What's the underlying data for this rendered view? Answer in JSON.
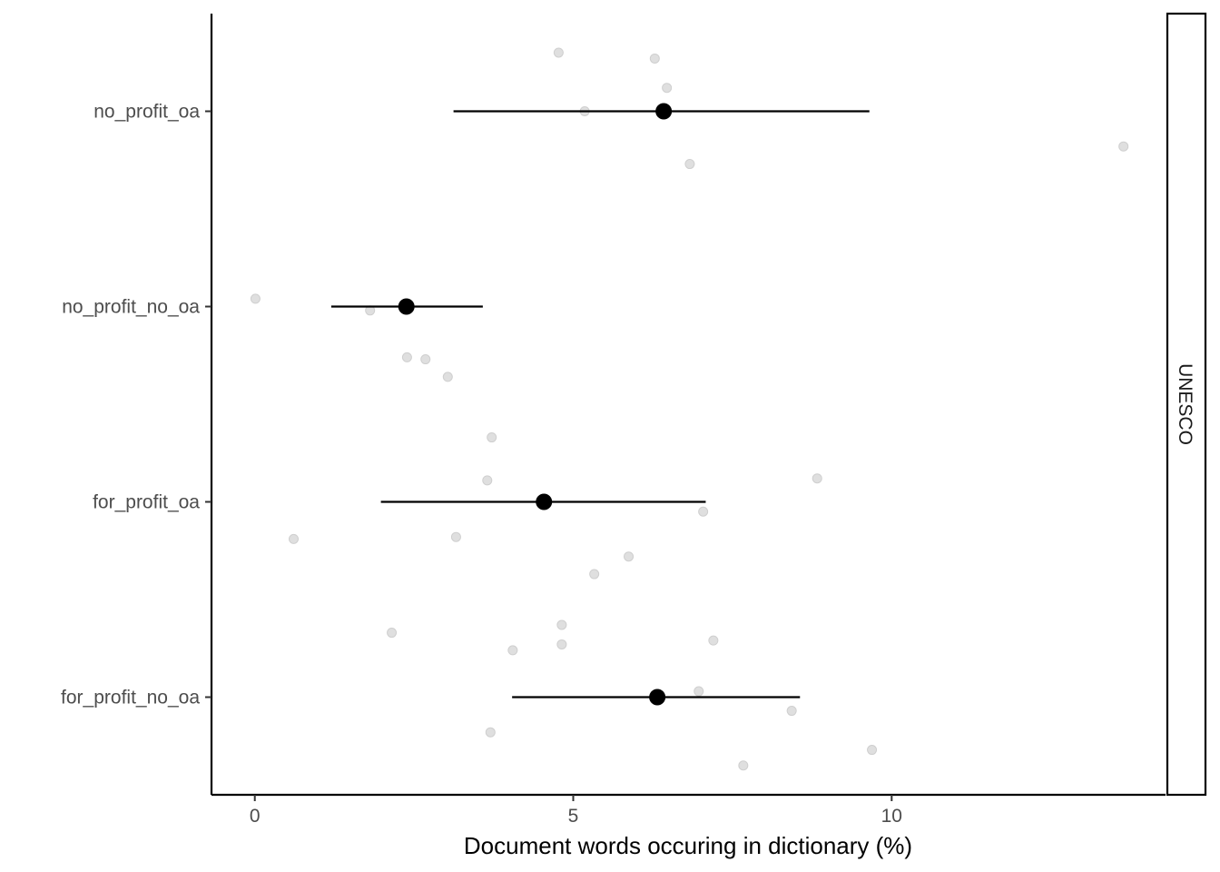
{
  "chart_data": {
    "type": "scatter",
    "xlabel": "Document words occuring in dictionary (%)",
    "ylabel": "",
    "xlim": [
      -0.68,
      14.3
    ],
    "x_ticks": [
      0,
      5,
      10
    ],
    "categories": [
      "no_profit_oa",
      "no_profit_no_oa",
      "for_profit_oa",
      "for_profit_no_oa"
    ],
    "facet_label": "UNESCO",
    "grid": false,
    "colors": {
      "points": "#d9d9d9",
      "summary": "#000000",
      "axis": "#000000"
    },
    "summary": [
      {
        "category": "no_profit_oa",
        "mean": 6.42,
        "low": 3.12,
        "high": 9.65
      },
      {
        "category": "no_profit_no_oa",
        "mean": 2.38,
        "low": 1.2,
        "high": 3.58
      },
      {
        "category": "for_profit_oa",
        "mean": 4.54,
        "low": 1.98,
        "high": 7.08
      },
      {
        "category": "for_profit_no_oa",
        "mean": 6.32,
        "low": 4.04,
        "high": 8.56
      }
    ],
    "points": [
      {
        "category": "no_profit_oa",
        "x": 4.77,
        "jitter": 0.3
      },
      {
        "category": "no_profit_oa",
        "x": 6.28,
        "jitter": 0.27
      },
      {
        "category": "no_profit_oa",
        "x": 6.47,
        "jitter": 0.12
      },
      {
        "category": "no_profit_oa",
        "x": 5.18,
        "jitter": 0.0
      },
      {
        "category": "no_profit_oa",
        "x": 13.64,
        "jitter": -0.18
      },
      {
        "category": "no_profit_oa",
        "x": 6.83,
        "jitter": -0.27
      },
      {
        "category": "no_profit_no_oa",
        "x": 0.01,
        "jitter": 0.04
      },
      {
        "category": "no_profit_no_oa",
        "x": 1.81,
        "jitter": -0.02
      },
      {
        "category": "no_profit_no_oa",
        "x": 2.39,
        "jitter": -0.26
      },
      {
        "category": "no_profit_no_oa",
        "x": 2.68,
        "jitter": -0.27
      },
      {
        "category": "no_profit_no_oa",
        "x": 3.03,
        "jitter": -0.36
      },
      {
        "category": "for_profit_oa",
        "x": 3.72,
        "jitter": 0.33
      },
      {
        "category": "for_profit_oa",
        "x": 3.65,
        "jitter": 0.11
      },
      {
        "category": "for_profit_oa",
        "x": 8.83,
        "jitter": 0.12
      },
      {
        "category": "for_profit_oa",
        "x": 7.04,
        "jitter": -0.05
      },
      {
        "category": "for_profit_oa",
        "x": 0.61,
        "jitter": -0.19
      },
      {
        "category": "for_profit_oa",
        "x": 3.16,
        "jitter": -0.18
      },
      {
        "category": "for_profit_oa",
        "x": 5.87,
        "jitter": -0.28
      },
      {
        "category": "for_profit_oa",
        "x": 5.33,
        "jitter": -0.37
      },
      {
        "category": "for_profit_no_oa",
        "x": 4.82,
        "jitter": 0.37
      },
      {
        "category": "for_profit_no_oa",
        "x": 2.15,
        "jitter": 0.33
      },
      {
        "category": "for_profit_no_oa",
        "x": 4.82,
        "jitter": 0.27
      },
      {
        "category": "for_profit_no_oa",
        "x": 7.2,
        "jitter": 0.29
      },
      {
        "category": "for_profit_no_oa",
        "x": 4.05,
        "jitter": 0.24
      },
      {
        "category": "for_profit_no_oa",
        "x": 6.97,
        "jitter": 0.03
      },
      {
        "category": "for_profit_no_oa",
        "x": 8.43,
        "jitter": -0.07
      },
      {
        "category": "for_profit_no_oa",
        "x": 3.7,
        "jitter": -0.18
      },
      {
        "category": "for_profit_no_oa",
        "x": 9.69,
        "jitter": -0.27
      },
      {
        "category": "for_profit_no_oa",
        "x": 7.67,
        "jitter": -0.35
      }
    ]
  }
}
